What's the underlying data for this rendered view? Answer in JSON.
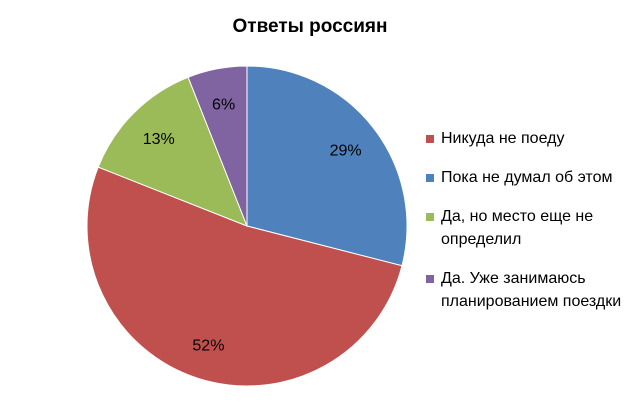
{
  "chart_data": {
    "type": "pie",
    "title": "Ответы россиян",
    "slices": [
      {
        "label": "Пока не думал об этом",
        "value": 29,
        "display": "29%",
        "color": "#4F81BD"
      },
      {
        "label": "Никуда не поеду",
        "value": 52,
        "display": "52%",
        "color": "#C0504D"
      },
      {
        "label": "Да, но место еще не определил",
        "value": 13,
        "display": "13%",
        "color": "#9BBB59"
      },
      {
        "label": "Да. Уже занимаюсь планированием поездки",
        "value": 6,
        "display": "6%",
        "color": "#8064A2"
      }
    ],
    "legend": {
      "placement": "right",
      "items": [
        {
          "label": "Никуда не поеду",
          "color": "#C0504D"
        },
        {
          "label": "Пока не думал об этом",
          "color": "#4F81BD"
        },
        {
          "label": "Да, но место еще не определил",
          "color": "#9BBB59"
        },
        {
          "label": "Да. Уже занимаюсь планированием поездки",
          "color": "#8064A2"
        }
      ]
    }
  }
}
